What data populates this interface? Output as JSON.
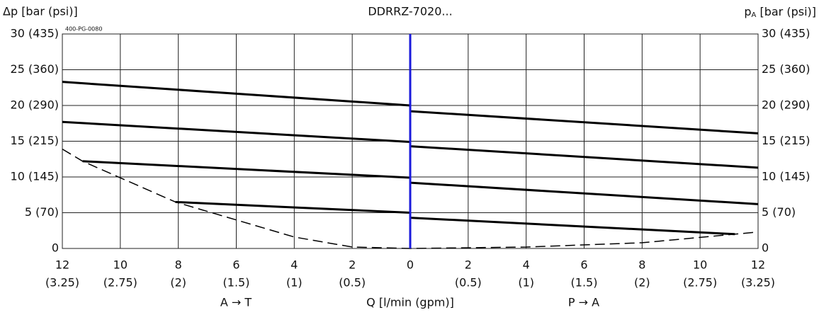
{
  "chart_data": {
    "type": "line",
    "title": "DDRRZ-7020...",
    "code": "400-PG-0080",
    "y_label": "Δp [bar (psi)]",
    "y2_label": {
      "main": "p",
      "sub": "A",
      "rest": " [bar (psi)]"
    },
    "x_label": "Q [l/min (gpm)]",
    "x_left_label": "A → T",
    "x_right_label": "P → A",
    "xlim": [
      -12,
      12
    ],
    "xticks": [
      {
        "value": -12,
        "label": "12"
      },
      {
        "value": -10,
        "label": "10"
      },
      {
        "value": -8,
        "label": "8"
      },
      {
        "value": -6,
        "label": "6"
      },
      {
        "value": -4,
        "label": "4"
      },
      {
        "value": -2,
        "label": "2"
      },
      0,
      2,
      4,
      6,
      8,
      10,
      12
    ],
    "xtick_sublabels": [
      "(3.25)",
      "(2.75)",
      "(2)",
      "(1.5)",
      "(1)",
      "(0.5)",
      null,
      "(0.5)",
      "(1)",
      "(1.5)",
      "(2)",
      "(2.75)",
      "(3.25)"
    ],
    "ylim": [
      0,
      30
    ],
    "yticks": [
      0,
      {
        "value": 5,
        "label": "5 (70)"
      },
      {
        "value": 10,
        "label": "10 (145)"
      },
      {
        "value": 15,
        "label": "15 (215)"
      },
      {
        "value": 20,
        "label": "20 (290)"
      },
      {
        "value": 25,
        "label": "25 (360)"
      },
      {
        "value": 30,
        "label": "30 (435)"
      }
    ],
    "grid": true,
    "divider_color": "#1a1adb",
    "series": [
      {
        "color": "#000000",
        "x": [
          -12,
          0,
          null,
          0,
          12
        ],
        "values": [
          23.3,
          20.0,
          null,
          19.2,
          16.1
        ]
      },
      {
        "color": "#000000",
        "x": [
          -12,
          0,
          null,
          0,
          12
        ],
        "values": [
          17.7,
          14.9,
          null,
          14.3,
          11.3
        ]
      },
      {
        "color": "#000000",
        "x": [
          -11.3,
          0,
          null,
          0,
          12
        ],
        "values": [
          12.2,
          9.9,
          null,
          9.2,
          6.2
        ]
      },
      {
        "color": "#000000",
        "x": [
          -8.1,
          0,
          null,
          0,
          11.2
        ],
        "values": [
          6.5,
          5.0,
          null,
          4.3,
          2.0
        ]
      },
      {
        "color": "#000000",
        "dash": true,
        "x": [
          -12,
          -11.3,
          -8.1,
          -4,
          -2,
          0,
          4,
          8,
          11.2,
          12
        ],
        "values": [
          13.9,
          12.2,
          6.5,
          1.6,
          0.2,
          0,
          0.2,
          0.8,
          2.0,
          2.3
        ]
      }
    ]
  }
}
